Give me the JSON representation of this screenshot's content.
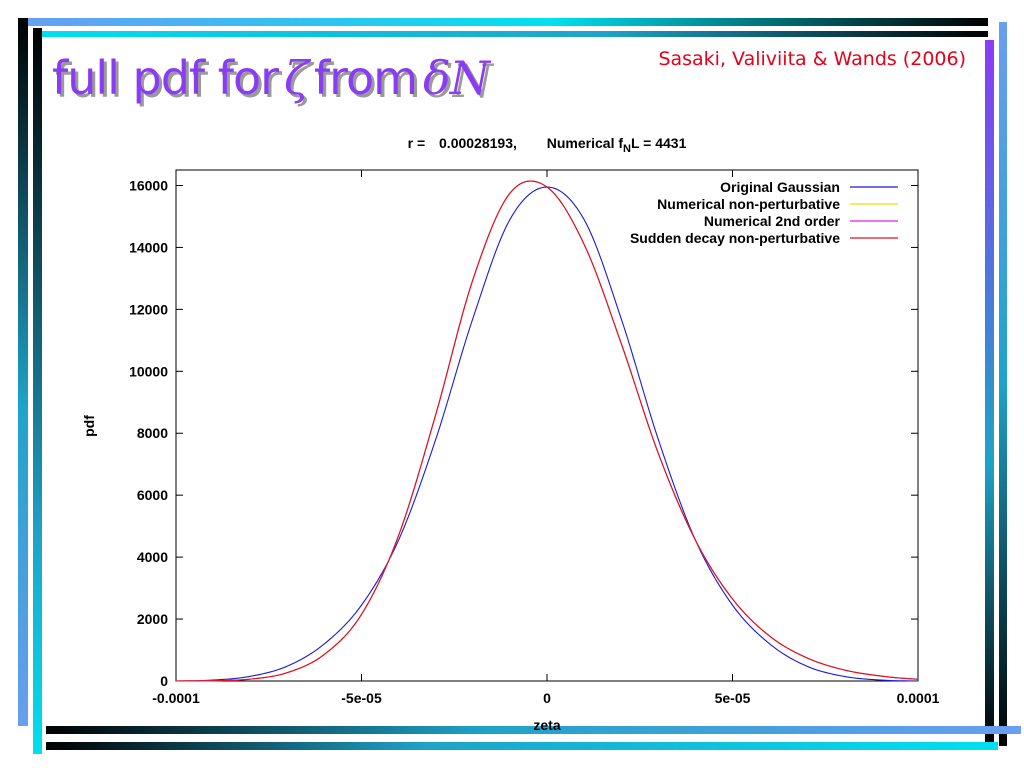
{
  "slide": {
    "title_prefix": "full pdf for",
    "zeta_symbol": "ζ",
    "title_middle": "from",
    "delta_n_symbol": "δN",
    "citation": "Sasaki, Valiviita & Wands (2006)",
    "colors": {
      "title": "#8a3cf5",
      "citation": "#e5001b",
      "deco_bars": [
        "#000000",
        "#1fa3c8",
        "#00e0f0",
        "#6a9ef0",
        "#8a3cf5"
      ]
    }
  },
  "chart_data": {
    "type": "line",
    "title_parts": {
      "r_label": "r =",
      "r_value": "0.00028193,",
      "fnl_pre": "Numerical f",
      "fnl_sub": "N",
      "fnl_post": "L = 4431"
    },
    "xlabel": "zeta",
    "ylabel": "pdf",
    "xlim": [
      -0.0001,
      0.0001
    ],
    "ylim": [
      0,
      16500
    ],
    "xticks": [
      -0.0001,
      -5e-05,
      0,
      5e-05,
      0.0001
    ],
    "xtick_labels": [
      "-0.0001",
      "-5e-05",
      "0",
      "5e-05",
      "0.0001"
    ],
    "yticks": [
      0,
      2000,
      4000,
      6000,
      8000,
      10000,
      12000,
      14000,
      16000
    ],
    "ytick_labels": [
      "0",
      "2000",
      "4000",
      "6000",
      "8000",
      "10000",
      "12000",
      "14000",
      "16000"
    ],
    "grid": false,
    "legend_position": "top-right",
    "series": [
      {
        "name": "Original Gaussian",
        "color": "#1a1ad6",
        "x": [
          -0.0001,
          -9e-05,
          -8e-05,
          -7e-05,
          -6e-05,
          -5e-05,
          -4e-05,
          -3e-05,
          -2e-05,
          -1e-05,
          0,
          1e-05,
          2e-05,
          3e-05,
          4e-05,
          5e-05,
          6e-05,
          7e-05,
          8e-05,
          9e-05,
          0.0001
        ],
        "y": [
          0,
          30,
          150,
          480,
          1200,
          2450,
          4550,
          7800,
          11700,
          14900,
          15950,
          14900,
          11700,
          7800,
          4550,
          2450,
          1200,
          480,
          150,
          30,
          0
        ]
      },
      {
        "name": "Numerical non-perturbative",
        "color": "#f0e000",
        "x": [
          -0.0001,
          -9e-05,
          -8e-05,
          -7e-05,
          -6e-05,
          -5e-05,
          -4e-05,
          -3e-05,
          -2e-05,
          -1e-05,
          0,
          1e-05,
          2e-05,
          3e-05,
          4e-05,
          5e-05,
          6e-05,
          7e-05,
          8e-05,
          9e-05,
          0.0001
        ],
        "y": [
          0,
          10,
          60,
          270,
          860,
          2150,
          4700,
          8600,
          12950,
          15750,
          15950,
          14100,
          10900,
          7350,
          4550,
          2650,
          1450,
          750,
          360,
          160,
          60
        ]
      },
      {
        "name": "Numerical 2nd order",
        "color": "#e020e0",
        "x": [
          -0.0001,
          -9e-05,
          -8e-05,
          -7e-05,
          -6e-05,
          -5e-05,
          -4e-05,
          -3e-05,
          -2e-05,
          -1e-05,
          0,
          1e-05,
          2e-05,
          3e-05,
          4e-05,
          5e-05,
          6e-05,
          7e-05,
          8e-05,
          9e-05,
          0.0001
        ],
        "y": [
          0,
          10,
          60,
          270,
          860,
          2150,
          4700,
          8600,
          12950,
          15750,
          15950,
          14100,
          10900,
          7350,
          4550,
          2650,
          1450,
          750,
          360,
          160,
          60
        ]
      },
      {
        "name": "Sudden decay non-perturbative",
        "color": "#e0101a",
        "x": [
          -0.0001,
          -9e-05,
          -8e-05,
          -7e-05,
          -6e-05,
          -5e-05,
          -4e-05,
          -3e-05,
          -2e-05,
          -1e-05,
          0,
          1e-05,
          2e-05,
          3e-05,
          4e-05,
          5e-05,
          6e-05,
          7e-05,
          8e-05,
          9e-05,
          0.0001
        ],
        "y": [
          0,
          10,
          60,
          270,
          860,
          2150,
          4700,
          8600,
          12950,
          15750,
          15950,
          14100,
          10900,
          7350,
          4550,
          2650,
          1450,
          750,
          360,
          160,
          60
        ]
      }
    ]
  }
}
